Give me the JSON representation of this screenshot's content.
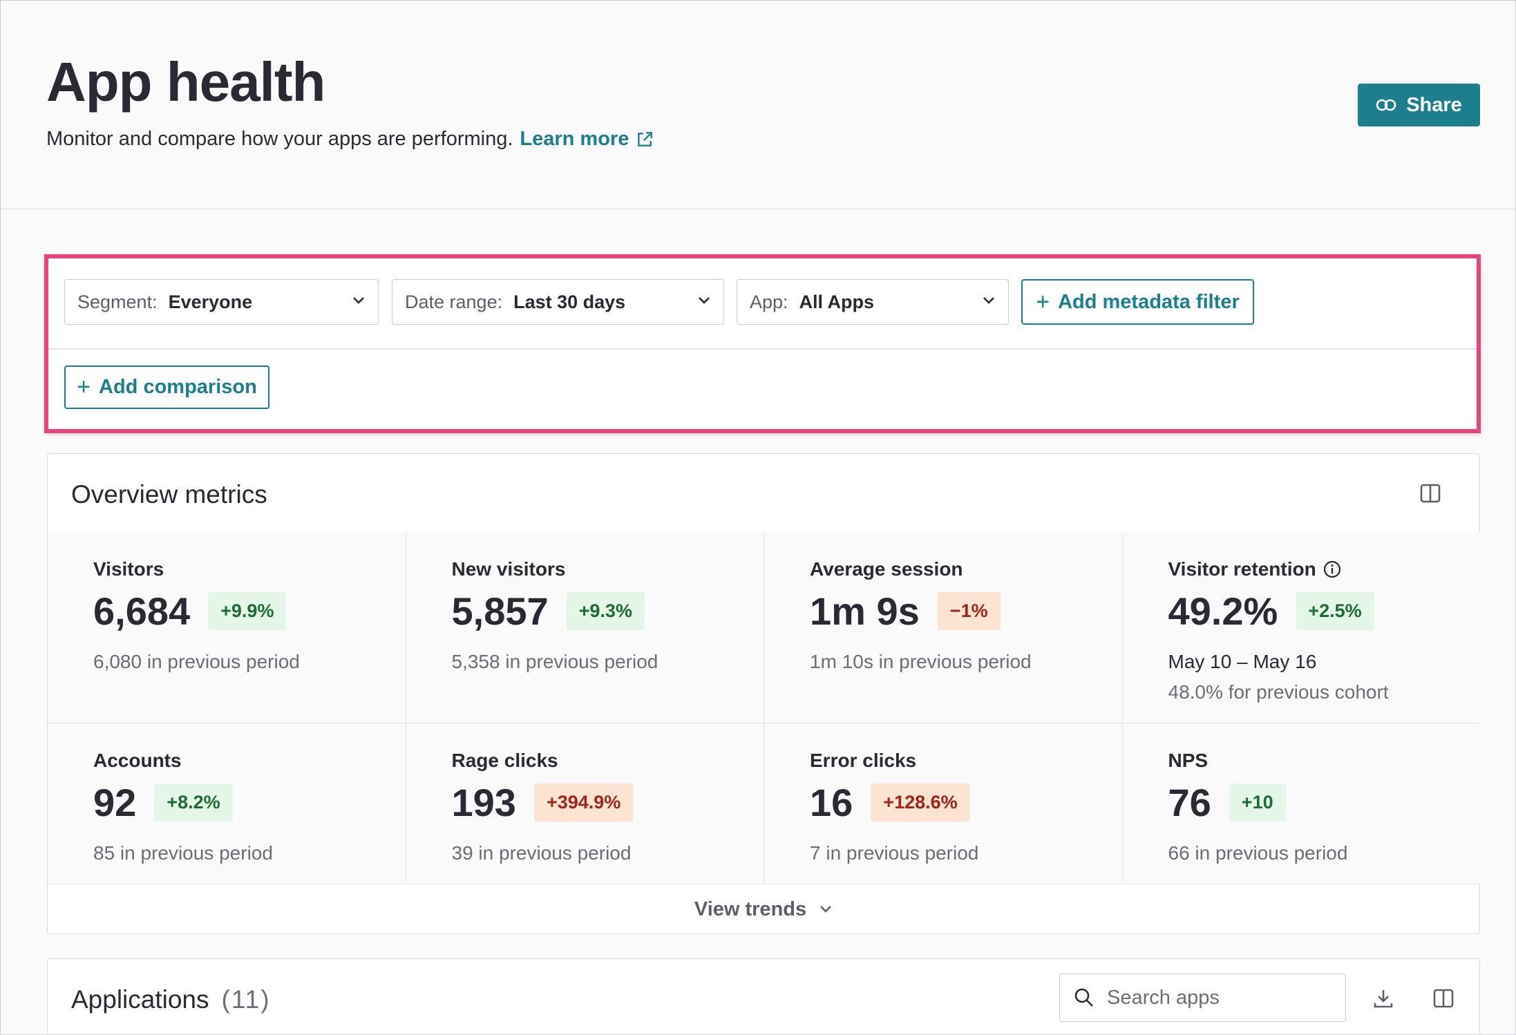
{
  "header": {
    "title": "App health",
    "subtitle": "Monitor and compare how your apps are performing.",
    "link": "Learn more",
    "share": "Share"
  },
  "filters": {
    "items": [
      {
        "label": "Segment:",
        "value": "Everyone"
      },
      {
        "label": "Date range:",
        "value": "Last 30 days"
      },
      {
        "label": "App:",
        "value": "All Apps"
      }
    ],
    "add_filter": "Add metadata filter",
    "add_comparison": "Add comparison"
  },
  "overview": {
    "title": "Overview metrics",
    "metrics": [
      {
        "name": "Visitors",
        "value": "6,684",
        "change": "+9.9%",
        "status": "good",
        "previous": "6,080 in previous period"
      },
      {
        "name": "New visitors",
        "value": "5,857",
        "change": "+9.3%",
        "status": "good",
        "previous": "5,358 in previous period"
      },
      {
        "name": "Average session",
        "value": "1m 9s",
        "change": "−1%",
        "status": "bad",
        "previous": "1m 10s in previous period"
      },
      {
        "name": "Visitor retention",
        "value": "49.2%",
        "change": "+2.5%",
        "status": "good",
        "range": "May 10 – May 16",
        "previous": "48.0% for previous cohort"
      },
      {
        "name": "Accounts",
        "value": "92",
        "change": "+8.2%",
        "status": "good",
        "previous": "85 in previous period"
      },
      {
        "name": "Rage clicks",
        "value": "193",
        "change": "+394.9%",
        "status": "bad",
        "previous": "39 in previous period"
      },
      {
        "name": "Error clicks",
        "value": "16",
        "change": "+128.6%",
        "status": "bad",
        "previous": "7 in previous period"
      },
      {
        "name": "NPS",
        "value": "76",
        "change": "+10",
        "status": "good",
        "previous": "66 in previous period"
      }
    ],
    "view_trends": "View trends"
  },
  "applications": {
    "title": "Applications",
    "count": "(11)",
    "search_placeholder": "Search apps"
  }
}
